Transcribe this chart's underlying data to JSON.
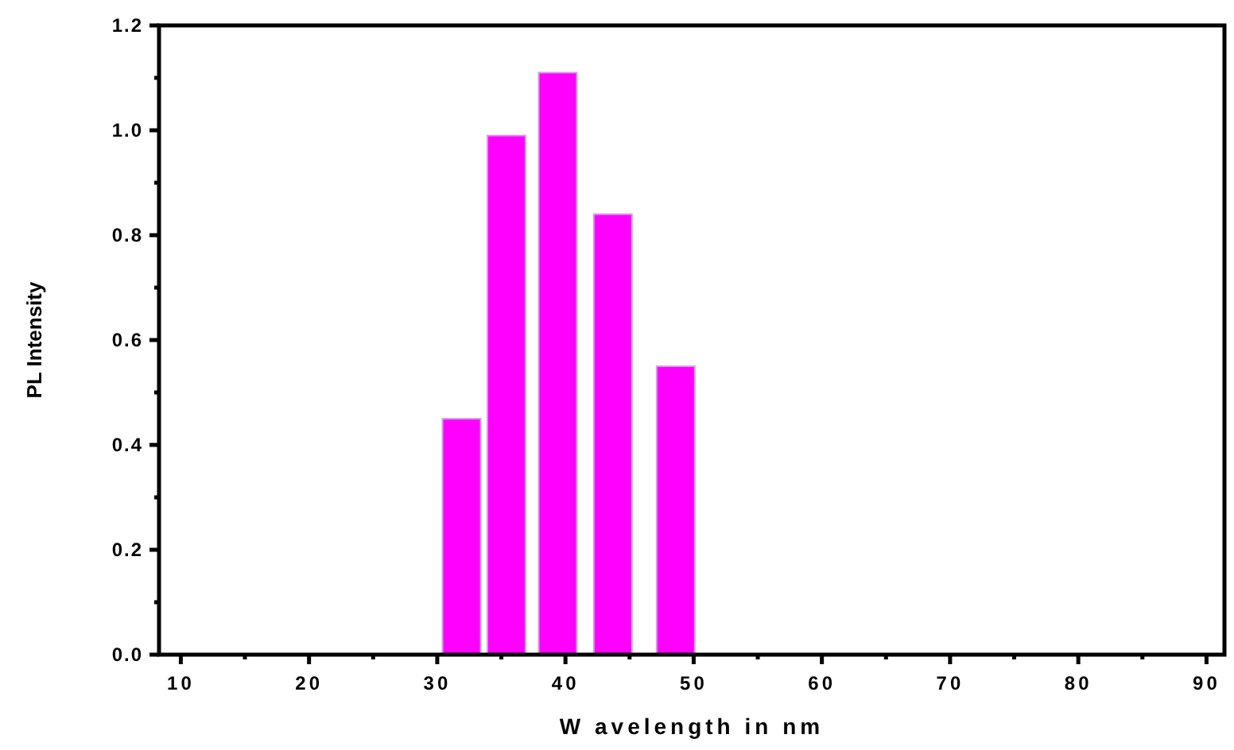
{
  "chart_data": {
    "type": "bar",
    "xlabel": "W avelength in nm",
    "ylabel": "PL Intensity",
    "x": [
      31.9,
      35.4,
      39.4,
      43.7,
      48.6
    ],
    "values": [
      0.45,
      0.99,
      1.11,
      0.84,
      0.55
    ],
    "color": "#ff00ff",
    "xlim": [
      8.3,
      91.4
    ],
    "xticks": [
      10,
      {
        "value": 15,
        "label": null
      },
      20,
      {
        "value": 25,
        "label": null
      },
      30,
      {
        "value": 35,
        "label": null
      },
      40,
      {
        "value": 45,
        "label": null
      },
      50,
      {
        "value": 55,
        "label": null
      },
      60,
      {
        "value": 65,
        "label": null
      },
      70,
      {
        "value": 75,
        "label": null
      },
      80,
      {
        "value": 85,
        "label": null
      },
      90
    ],
    "ylim": [
      0,
      1.2
    ],
    "yticks": [
      {
        "value": 0,
        "label": "0.0"
      },
      {
        "value": 0.1,
        "label": null
      },
      {
        "value": 0.2,
        "label": "0.2"
      },
      {
        "value": 0.3,
        "label": null
      },
      {
        "value": 0.4,
        "label": "0.4"
      },
      {
        "value": 0.5,
        "label": null
      },
      {
        "value": 0.6,
        "label": "0.6"
      },
      {
        "value": 0.7,
        "label": null
      },
      {
        "value": 0.8,
        "label": "0.8"
      },
      {
        "value": 0.9,
        "label": null
      },
      {
        "value": 1.0,
        "label": "1.0"
      },
      {
        "value": 1.1,
        "label": null
      },
      {
        "value": 1.2,
        "label": "1.2"
      }
    ]
  }
}
